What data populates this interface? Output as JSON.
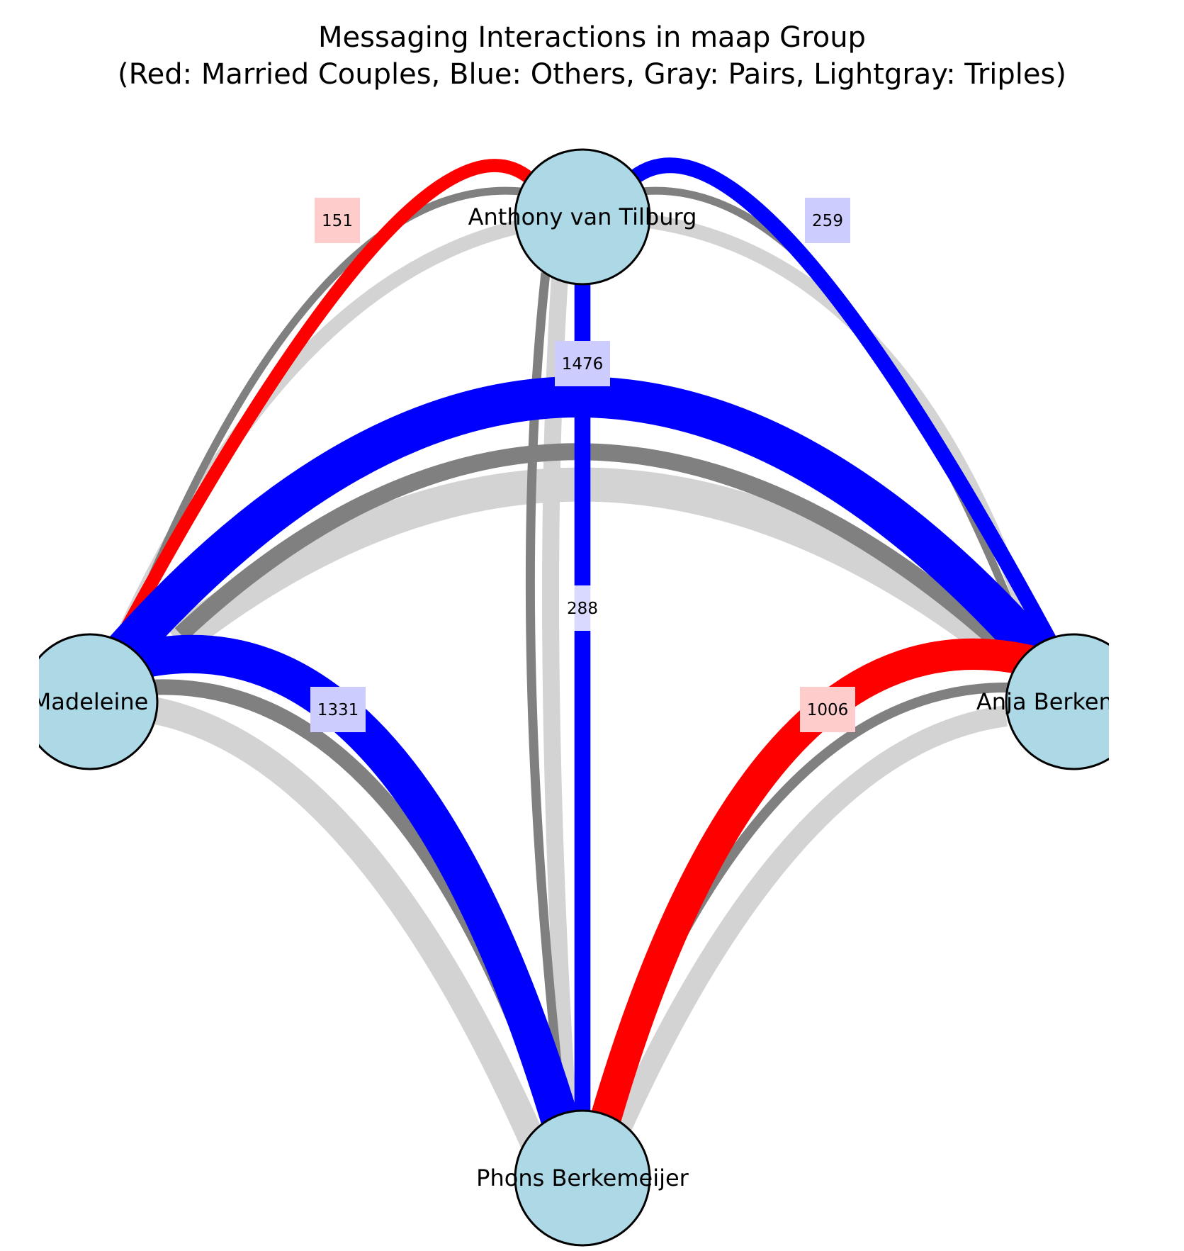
{
  "title_line1": "Messaging Interactions in maap Group",
  "title_line2": "(Red: Married Couples, Blue: Others, Gray: Pairs, Lightgray: Triples)",
  "colors": {
    "married": "#ff0000",
    "others": "#0000ff",
    "pairs": "#808080",
    "triples": "#d3d3d3",
    "node_fill": "#add8e6",
    "node_stroke": "#000000"
  },
  "nodes": [
    {
      "id": "anthony",
      "label": "Anthony van Tilburg"
    },
    {
      "id": "madeleine",
      "label": "Madeleine"
    },
    {
      "id": "anja",
      "label": "Anja Berkemeijer"
    },
    {
      "id": "phons",
      "label": "Phons Berkemeijer"
    }
  ],
  "edges": [
    {
      "from": "anthony",
      "to": "madeleine",
      "type": "married",
      "value": 151
    },
    {
      "from": "anthony",
      "to": "anja",
      "type": "others",
      "value": 259
    },
    {
      "from": "madeleine",
      "to": "anja",
      "type": "others",
      "value": 1476
    },
    {
      "from": "anthony",
      "to": "phons",
      "type": "others",
      "value": 288
    },
    {
      "from": "madeleine",
      "to": "phons",
      "type": "others",
      "value": 1331
    },
    {
      "from": "anja",
      "to": "phons",
      "type": "married",
      "value": 1006
    }
  ]
}
